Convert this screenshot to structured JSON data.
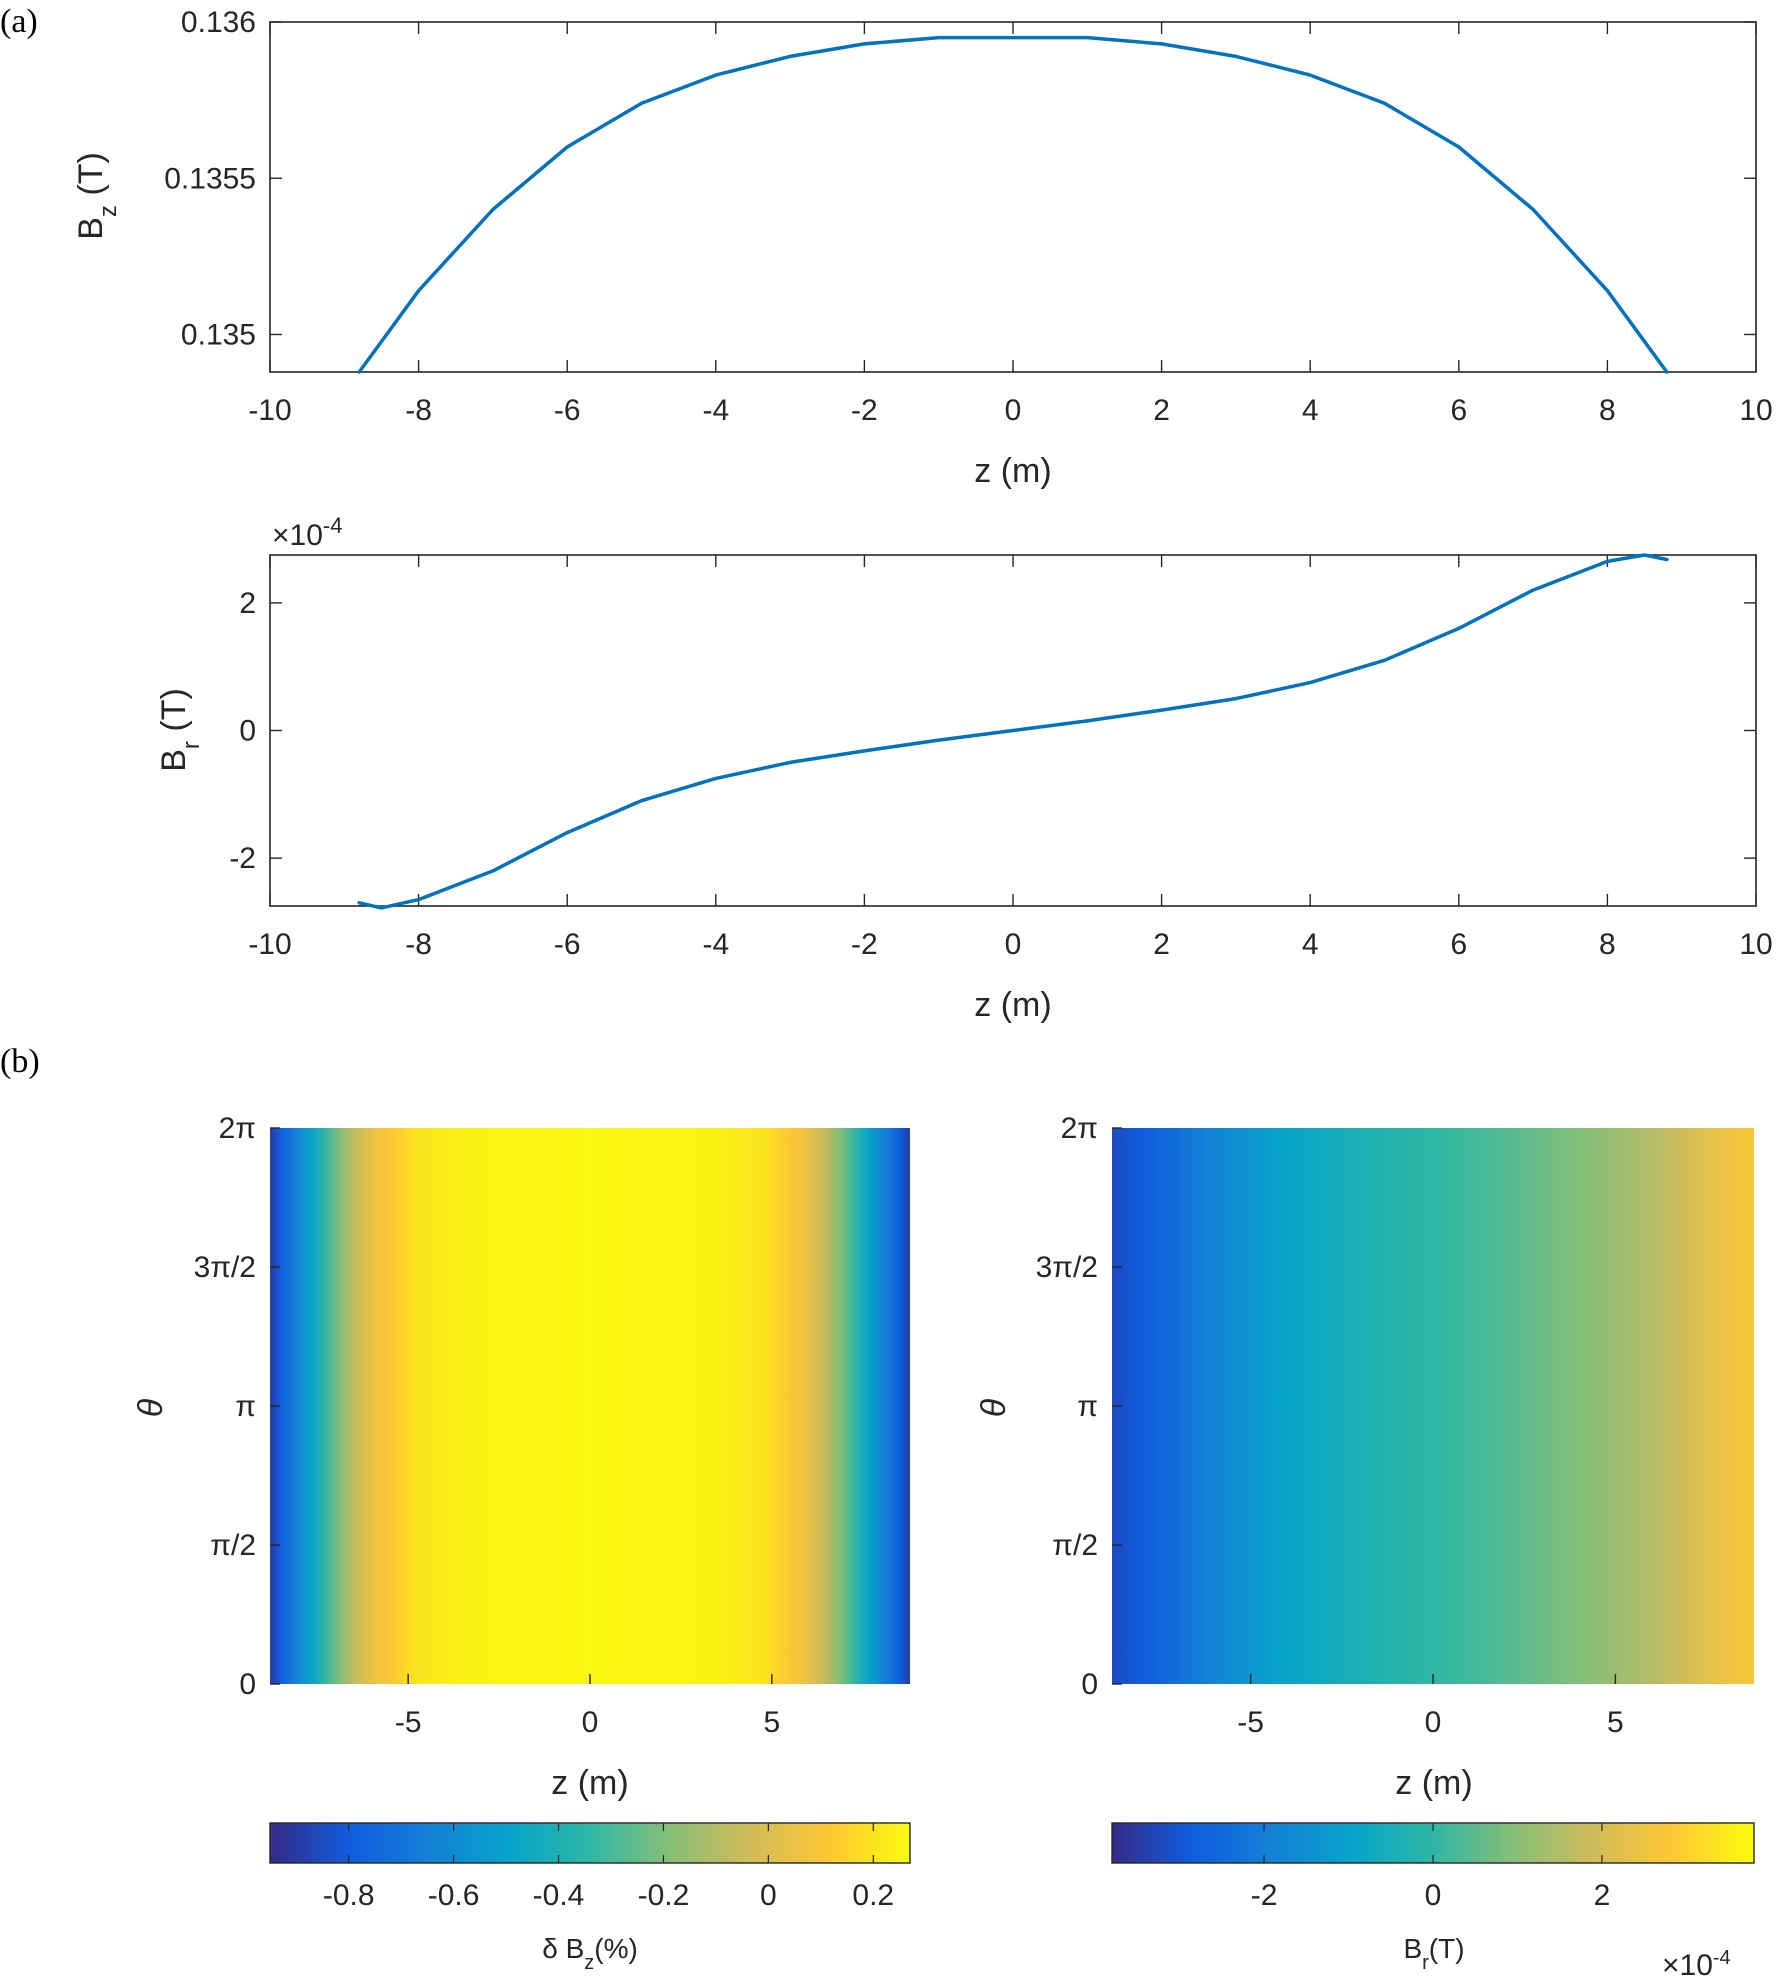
{
  "panel_labels": {
    "a": "(a)",
    "b": "(b)"
  },
  "chart_data": [
    {
      "id": "bz_line",
      "type": "line",
      "xlabel": "z (m)",
      "ylabel_main": "B",
      "ylabel_sub": "z",
      "ylabel_unit": " (T)",
      "xlim": [
        -10,
        10
      ],
      "ylim": [
        0.13488,
        0.136
      ],
      "xticks": [
        -10,
        -8,
        -6,
        -4,
        -2,
        0,
        2,
        4,
        6,
        8,
        10
      ],
      "xtick_labels": [
        "-10",
        "-8",
        "-6",
        "-4",
        "-2",
        "0",
        "2",
        "4",
        "6",
        "8",
        "10"
      ],
      "yticks": [
        0.135,
        0.1355,
        0.136
      ],
      "ytick_labels": [
        "0.135",
        "0.1355",
        "0.136"
      ],
      "color": "#0072BD",
      "series": [
        {
          "x": [
            -8.8,
            -8,
            -7,
            -6,
            -5,
            -4,
            -3,
            -2,
            -1,
            0,
            1,
            2,
            3,
            4,
            5,
            6,
            7,
            8,
            8.8
          ],
          "y": [
            0.13488,
            0.13514,
            0.1354,
            0.1356,
            0.13574,
            0.13583,
            0.13589,
            0.13593,
            0.13595,
            0.13595,
            0.13595,
            0.13593,
            0.13589,
            0.13583,
            0.13574,
            0.1356,
            0.1354,
            0.13514,
            0.13488
          ]
        }
      ]
    },
    {
      "id": "br_line",
      "type": "line",
      "xlabel": "z (m)",
      "ylabel_main": "B",
      "ylabel_sub": "r",
      "ylabel_unit": " (T)",
      "exponent_label": "×10",
      "exponent_power": "-4",
      "xlim": [
        -10,
        10
      ],
      "ylim": [
        -2.75,
        2.75
      ],
      "xticks": [
        -10,
        -8,
        -6,
        -4,
        -2,
        0,
        2,
        4,
        6,
        8,
        10
      ],
      "xtick_labels": [
        "-10",
        "-8",
        "-6",
        "-4",
        "-2",
        "0",
        "2",
        "4",
        "6",
        "8",
        "10"
      ],
      "yticks": [
        -2,
        0,
        2
      ],
      "ytick_labels": [
        "-2",
        "0",
        "2"
      ],
      "color": "#0072BD",
      "series": [
        {
          "x": [
            -8.8,
            -8.5,
            -8,
            -7,
            -6,
            -5,
            -4,
            -3,
            -2,
            -1,
            0,
            1,
            2,
            3,
            4,
            5,
            6,
            7,
            8,
            8.5,
            8.8
          ],
          "y": [
            -2.7,
            -2.78,
            -2.65,
            -2.2,
            -1.6,
            -1.1,
            -0.75,
            -0.5,
            -0.32,
            -0.15,
            0,
            0.15,
            0.32,
            0.5,
            0.75,
            1.1,
            1.6,
            2.2,
            2.65,
            2.75,
            2.68
          ]
        }
      ]
    },
    {
      "id": "dbz_map",
      "type": "heatmap",
      "xlabel": "z (m)",
      "ylabel": "θ",
      "xlim": [
        -8.8,
        8.8
      ],
      "ylim": [
        0,
        6.2832
      ],
      "xticks": [
        -5,
        0,
        5
      ],
      "xtick_labels": [
        "-5",
        "0",
        "5"
      ],
      "yticks": [
        0,
        1.5708,
        3.1416,
        4.7124,
        6.2832
      ],
      "ytick_labels": [
        "0",
        "π/2",
        "π",
        "3π/2",
        "2π"
      ],
      "profile_z": [
        -8.8,
        -8.4,
        -7.8,
        -7.2,
        -6.6,
        -6.0,
        -5.4,
        -4.8,
        -3.5,
        0,
        3.5,
        4.8,
        5.4,
        6.0,
        6.6,
        7.2,
        7.8,
        8.4,
        8.8
      ],
      "profile_value": [
        -0.9,
        -0.75,
        -0.55,
        -0.3,
        -0.1,
        0.05,
        0.12,
        0.2,
        0.24,
        0.26,
        0.24,
        0.2,
        0.12,
        0.05,
        -0.1,
        -0.3,
        -0.55,
        -0.75,
        -0.9
      ],
      "colorbar": {
        "label_main": "δ B",
        "label_sub": "z",
        "label_unit": "(%)",
        "range": [
          -0.95,
          0.27
        ],
        "ticks": [
          -0.8,
          -0.6,
          -0.4,
          -0.2,
          0,
          0.2
        ],
        "tick_labels": [
          "-0.8",
          "-0.6",
          "-0.4",
          "-0.2",
          "0",
          "0.2"
        ]
      }
    },
    {
      "id": "br_map",
      "type": "heatmap",
      "xlabel": "z (m)",
      "ylabel": "θ",
      "xlim": [
        -8.8,
        8.8
      ],
      "ylim": [
        0,
        6.2832
      ],
      "xticks": [
        -5,
        0,
        5
      ],
      "xtick_labels": [
        "-5",
        "0",
        "5"
      ],
      "yticks": [
        0,
        1.5708,
        3.1416,
        4.7124,
        6.2832
      ],
      "ytick_labels": [
        "0",
        "π/2",
        "π",
        "3π/2",
        "2π"
      ],
      "profile_z": [
        -8.8,
        -7.5,
        -6,
        -4,
        -2,
        0,
        2,
        4,
        6,
        7,
        8,
        8.8
      ],
      "profile_value": [
        -3.2,
        -2.6,
        -1.8,
        -0.9,
        -0.4,
        0,
        0.4,
        0.9,
        1.5,
        2.0,
        2.5,
        2.7
      ],
      "colorbar": {
        "label_main": "B",
        "label_sub": "r",
        "label_unit": "(T)",
        "exponent_label": "×10",
        "exponent_power": "-4",
        "range": [
          -3.8,
          3.8
        ],
        "ticks": [
          -2,
          0,
          2
        ],
        "tick_labels": [
          "-2",
          "0",
          "2"
        ]
      }
    }
  ]
}
